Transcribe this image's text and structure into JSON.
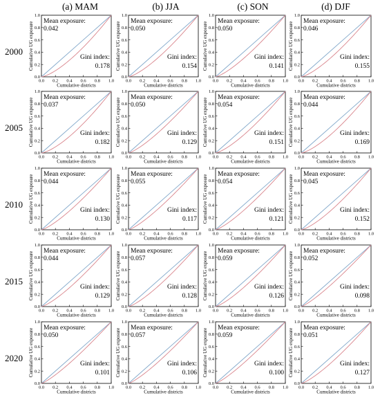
{
  "figure": {
    "columns": [
      "(a) MAM",
      "(b) JJA",
      "(c) SON",
      "(d) DJF"
    ],
    "rows": [
      "2000",
      "2005",
      "2010",
      "2015",
      "2020"
    ]
  },
  "panel_text": {
    "xlabel": "Cumulative districts",
    "ylabel": "Cumulative UG exposure",
    "mean_label": "Mean exposure:",
    "gini_label": "Gini index:",
    "ticks": [
      "0.0",
      "0.2",
      "0.4",
      "0.6",
      "0.8",
      "1.0"
    ]
  },
  "colors": {
    "equality_line": "#7fa6c9",
    "lorenz_curve": "#d9858c",
    "axes": "#000000"
  },
  "chart_data": {
    "type": "line",
    "description_rows_by_year_columns_by_season": true,
    "xlim": [
      0,
      1
    ],
    "ylim": [
      0,
      1
    ],
    "panels": [
      {
        "season": "(a) MAM",
        "year": "2000",
        "mean_exposure": "0.042",
        "gini_index": "0.178"
      },
      {
        "season": "(b) JJA",
        "year": "2000",
        "mean_exposure": "0.050",
        "gini_index": "0.154"
      },
      {
        "season": "(c) SON",
        "year": "2000",
        "mean_exposure": "0.050",
        "gini_index": "0.141"
      },
      {
        "season": "(d) DJF",
        "year": "2000",
        "mean_exposure": "0.046",
        "gini_index": "0.155"
      },
      {
        "season": "(a) MAM",
        "year": "2005",
        "mean_exposure": "0.037",
        "gini_index": "0.182"
      },
      {
        "season": "(b) JJA",
        "year": "2005",
        "mean_exposure": "0.050",
        "gini_index": "0.129"
      },
      {
        "season": "(c) SON",
        "year": "2005",
        "mean_exposure": "0.054",
        "gini_index": "0.151"
      },
      {
        "season": "(d) DJF",
        "year": "2005",
        "mean_exposure": "0.044",
        "gini_index": "0.169"
      },
      {
        "season": "(a) MAM",
        "year": "2010",
        "mean_exposure": "0.044",
        "gini_index": "0.130"
      },
      {
        "season": "(b) JJA",
        "year": "2010",
        "mean_exposure": "0.055",
        "gini_index": "0.117"
      },
      {
        "season": "(c) SON",
        "year": "2010",
        "mean_exposure": "0.054",
        "gini_index": "0.121"
      },
      {
        "season": "(d) DJF",
        "year": "2010",
        "mean_exposure": "0.045",
        "gini_index": "0.152"
      },
      {
        "season": "(a) MAM",
        "year": "2015",
        "mean_exposure": "0.044",
        "gini_index": "0.129"
      },
      {
        "season": "(b) JJA",
        "year": "2015",
        "mean_exposure": "0.057",
        "gini_index": "0.128"
      },
      {
        "season": "(c) SON",
        "year": "2015",
        "mean_exposure": "0.059",
        "gini_index": "0.126"
      },
      {
        "season": "(d) DJF",
        "year": "2015",
        "mean_exposure": "0.052",
        "gini_index": "0.098"
      },
      {
        "season": "(a) MAM",
        "year": "2020",
        "mean_exposure": "0.050",
        "gini_index": "0.101"
      },
      {
        "season": "(b) JJA",
        "year": "2020",
        "mean_exposure": "0.057",
        "gini_index": "0.106"
      },
      {
        "season": "(c) SON",
        "year": "2020",
        "mean_exposure": "0.059",
        "gini_index": "0.100"
      },
      {
        "season": "(d) DJF",
        "year": "2020",
        "mean_exposure": "0.051",
        "gini_index": "0.127"
      }
    ]
  }
}
